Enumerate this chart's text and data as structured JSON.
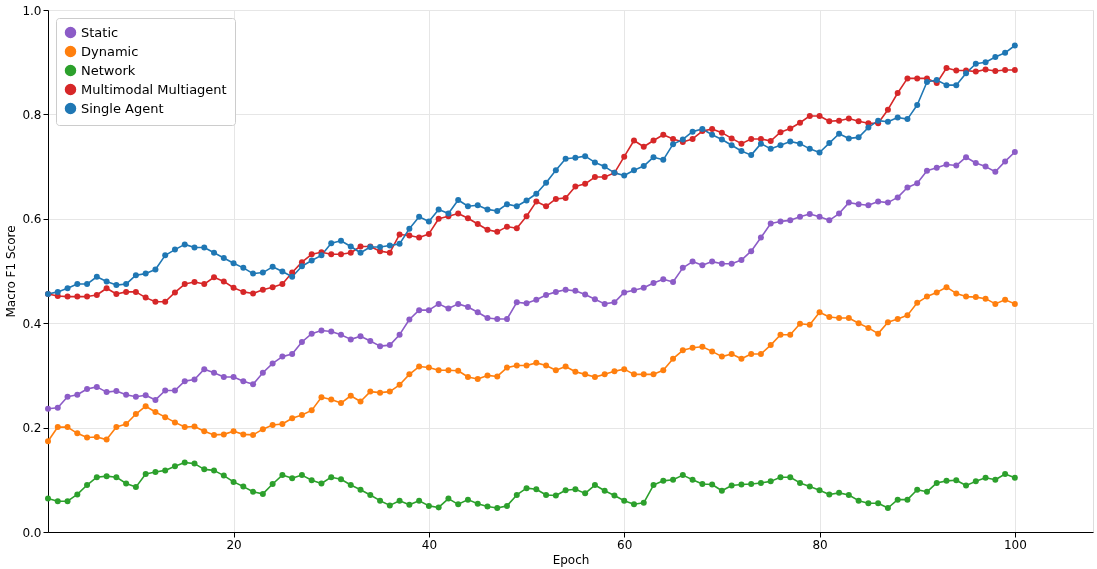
{
  "chart_data": {
    "type": "line",
    "xlabel": "Epoch",
    "ylabel": "Macro F1 Score",
    "x": [
      1,
      2,
      3,
      4,
      5,
      6,
      7,
      8,
      9,
      10,
      11,
      12,
      13,
      14,
      15,
      16,
      17,
      18,
      19,
      20,
      21,
      22,
      23,
      24,
      25,
      26,
      27,
      28,
      29,
      30,
      31,
      32,
      33,
      34,
      35,
      36,
      37,
      38,
      39,
      40,
      41,
      42,
      43,
      44,
      45,
      46,
      47,
      48,
      49,
      50,
      51,
      52,
      53,
      54,
      55,
      56,
      57,
      58,
      59,
      60,
      61,
      62,
      63,
      64,
      65,
      66,
      67,
      68,
      69,
      70,
      71,
      72,
      73,
      74,
      75,
      76,
      77,
      78,
      79,
      80,
      81,
      82,
      83,
      84,
      85,
      86,
      87,
      88,
      89,
      90,
      91,
      92,
      93,
      94,
      95,
      96,
      97,
      98,
      99,
      100
    ],
    "xlim": [
      1,
      108
    ],
    "xticks": [
      20,
      40,
      60,
      80,
      100
    ],
    "ylim": [
      0,
      1
    ],
    "yticks": [
      {
        "value": 0,
        "label": "0.0"
      },
      {
        "value": 0.2,
        "label": "0.2"
      },
      {
        "value": 0.4,
        "label": "0.4"
      },
      {
        "value": 0.6,
        "label": "0.6"
      },
      {
        "value": 0.8,
        "label": "0.8"
      },
      {
        "value": 1,
        "label": "1.0"
      }
    ],
    "grid": true,
    "legend": "top left",
    "marker": "circle",
    "line_style": "solid",
    "series": [
      {
        "name": "Static",
        "color": "#8c5cc7",
        "values": [
          0.236,
          0.238,
          0.259,
          0.263,
          0.274,
          0.278,
          0.268,
          0.27,
          0.263,
          0.259,
          0.262,
          0.253,
          0.271,
          0.271,
          0.289,
          0.292,
          0.312,
          0.305,
          0.297,
          0.297,
          0.289,
          0.283,
          0.305,
          0.323,
          0.336,
          0.341,
          0.364,
          0.38,
          0.386,
          0.384,
          0.378,
          0.369,
          0.375,
          0.366,
          0.356,
          0.358,
          0.378,
          0.407,
          0.425,
          0.425,
          0.437,
          0.428,
          0.437,
          0.431,
          0.421,
          0.41,
          0.408,
          0.408,
          0.44,
          0.438,
          0.445,
          0.454,
          0.46,
          0.464,
          0.462,
          0.455,
          0.446,
          0.437,
          0.44,
          0.459,
          0.463,
          0.468,
          0.477,
          0.484,
          0.479,
          0.506,
          0.518,
          0.511,
          0.518,
          0.514,
          0.514,
          0.521,
          0.538,
          0.564,
          0.591,
          0.595,
          0.597,
          0.604,
          0.609,
          0.604,
          0.597,
          0.61,
          0.631,
          0.628,
          0.626,
          0.633,
          0.631,
          0.641,
          0.66,
          0.668,
          0.692,
          0.698,
          0.704,
          0.702,
          0.718,
          0.707,
          0.7,
          0.69,
          0.71,
          0.728
        ]
      },
      {
        "name": "Dynamic",
        "color": "#ff7f0e",
        "values": [
          0.174,
          0.201,
          0.201,
          0.189,
          0.181,
          0.182,
          0.177,
          0.201,
          0.207,
          0.226,
          0.241,
          0.23,
          0.22,
          0.21,
          0.201,
          0.202,
          0.193,
          0.186,
          0.187,
          0.193,
          0.187,
          0.186,
          0.197,
          0.205,
          0.207,
          0.218,
          0.224,
          0.233,
          0.258,
          0.254,
          0.247,
          0.261,
          0.25,
          0.269,
          0.267,
          0.269,
          0.282,
          0.302,
          0.317,
          0.315,
          0.31,
          0.31,
          0.309,
          0.297,
          0.293,
          0.3,
          0.298,
          0.315,
          0.319,
          0.319,
          0.324,
          0.319,
          0.31,
          0.317,
          0.307,
          0.302,
          0.297,
          0.302,
          0.308,
          0.312,
          0.302,
          0.302,
          0.302,
          0.31,
          0.332,
          0.348,
          0.353,
          0.355,
          0.346,
          0.336,
          0.341,
          0.332,
          0.341,
          0.341,
          0.358,
          0.378,
          0.378,
          0.399,
          0.397,
          0.421,
          0.412,
          0.41,
          0.41,
          0.4,
          0.391,
          0.38,
          0.402,
          0.408,
          0.415,
          0.439,
          0.451,
          0.459,
          0.469,
          0.457,
          0.451,
          0.45,
          0.447,
          0.437,
          0.445,
          0.437
        ]
      },
      {
        "name": "Network",
        "color": "#2ca02c",
        "values": [
          0.064,
          0.059,
          0.059,
          0.072,
          0.09,
          0.105,
          0.107,
          0.105,
          0.093,
          0.086,
          0.111,
          0.115,
          0.118,
          0.126,
          0.133,
          0.131,
          0.12,
          0.118,
          0.108,
          0.096,
          0.087,
          0.077,
          0.073,
          0.092,
          0.109,
          0.103,
          0.109,
          0.099,
          0.093,
          0.105,
          0.101,
          0.09,
          0.081,
          0.071,
          0.06,
          0.051,
          0.06,
          0.052,
          0.06,
          0.05,
          0.047,
          0.064,
          0.053,
          0.062,
          0.054,
          0.049,
          0.046,
          0.05,
          0.071,
          0.084,
          0.082,
          0.071,
          0.07,
          0.08,
          0.082,
          0.074,
          0.09,
          0.079,
          0.07,
          0.06,
          0.053,
          0.056,
          0.09,
          0.098,
          0.1,
          0.109,
          0.1,
          0.092,
          0.091,
          0.079,
          0.089,
          0.091,
          0.092,
          0.094,
          0.097,
          0.105,
          0.105,
          0.094,
          0.087,
          0.08,
          0.072,
          0.075,
          0.071,
          0.06,
          0.055,
          0.055,
          0.046,
          0.062,
          0.062,
          0.081,
          0.077,
          0.094,
          0.098,
          0.099,
          0.089,
          0.097,
          0.104,
          0.1,
          0.111,
          0.104
        ]
      },
      {
        "name": "Multimodal Multiagent",
        "color": "#d62728",
        "values": [
          0.456,
          0.452,
          0.451,
          0.451,
          0.451,
          0.454,
          0.467,
          0.456,
          0.46,
          0.46,
          0.449,
          0.441,
          0.441,
          0.459,
          0.475,
          0.479,
          0.475,
          0.488,
          0.48,
          0.468,
          0.46,
          0.457,
          0.464,
          0.469,
          0.475,
          0.497,
          0.517,
          0.532,
          0.536,
          0.532,
          0.532,
          0.535,
          0.547,
          0.547,
          0.538,
          0.535,
          0.57,
          0.568,
          0.564,
          0.571,
          0.6,
          0.605,
          0.61,
          0.601,
          0.59,
          0.579,
          0.575,
          0.585,
          0.582,
          0.605,
          0.633,
          0.624,
          0.638,
          0.64,
          0.662,
          0.667,
          0.68,
          0.68,
          0.688,
          0.719,
          0.75,
          0.738,
          0.75,
          0.761,
          0.753,
          0.747,
          0.753,
          0.768,
          0.772,
          0.765,
          0.754,
          0.744,
          0.753,
          0.753,
          0.749,
          0.766,
          0.773,
          0.784,
          0.797,
          0.797,
          0.787,
          0.788,
          0.792,
          0.787,
          0.783,
          0.783,
          0.809,
          0.841,
          0.869,
          0.869,
          0.869,
          0.86,
          0.889,
          0.884,
          0.884,
          0.882,
          0.886,
          0.883,
          0.885,
          0.885
        ]
      },
      {
        "name": "Single Agent",
        "color": "#1f77b4",
        "values": [
          0.456,
          0.46,
          0.467,
          0.475,
          0.475,
          0.489,
          0.48,
          0.473,
          0.475,
          0.492,
          0.495,
          0.503,
          0.53,
          0.541,
          0.551,
          0.545,
          0.545,
          0.535,
          0.525,
          0.515,
          0.506,
          0.495,
          0.497,
          0.508,
          0.499,
          0.489,
          0.509,
          0.52,
          0.53,
          0.553,
          0.558,
          0.547,
          0.535,
          0.546,
          0.546,
          0.549,
          0.552,
          0.581,
          0.604,
          0.595,
          0.618,
          0.61,
          0.636,
          0.624,
          0.626,
          0.618,
          0.615,
          0.628,
          0.624,
          0.635,
          0.648,
          0.669,
          0.693,
          0.715,
          0.717,
          0.72,
          0.708,
          0.7,
          0.688,
          0.683,
          0.693,
          0.701,
          0.718,
          0.713,
          0.743,
          0.752,
          0.767,
          0.772,
          0.761,
          0.752,
          0.741,
          0.73,
          0.722,
          0.744,
          0.734,
          0.741,
          0.748,
          0.744,
          0.734,
          0.727,
          0.745,
          0.763,
          0.754,
          0.756,
          0.775,
          0.788,
          0.786,
          0.794,
          0.791,
          0.818,
          0.862,
          0.866,
          0.856,
          0.856,
          0.879,
          0.897,
          0.9,
          0.91,
          0.918,
          0.932
        ]
      }
    ]
  }
}
